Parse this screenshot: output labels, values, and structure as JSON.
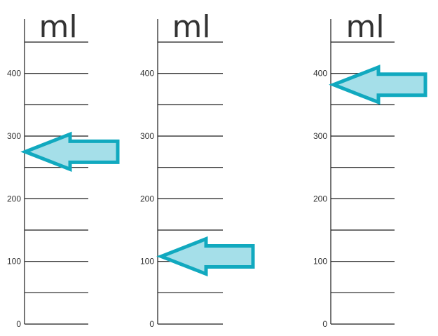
{
  "unit": "ml",
  "tick_values": [
    0,
    100,
    200,
    300,
    400
  ],
  "scale": {
    "min": 0,
    "max": 450,
    "minor_step": 50
  },
  "colors": {
    "line": "#1a1a1a",
    "arrow_fill": "#a5dfe9",
    "arrow_stroke": "#11a9bf",
    "text": "#333333"
  },
  "cylinders": [
    {
      "id": "cylinder-1",
      "arrow_reading": 275
    },
    {
      "id": "cylinder-2",
      "arrow_reading": 108
    },
    {
      "id": "cylinder-3",
      "arrow_reading": 382
    }
  ]
}
